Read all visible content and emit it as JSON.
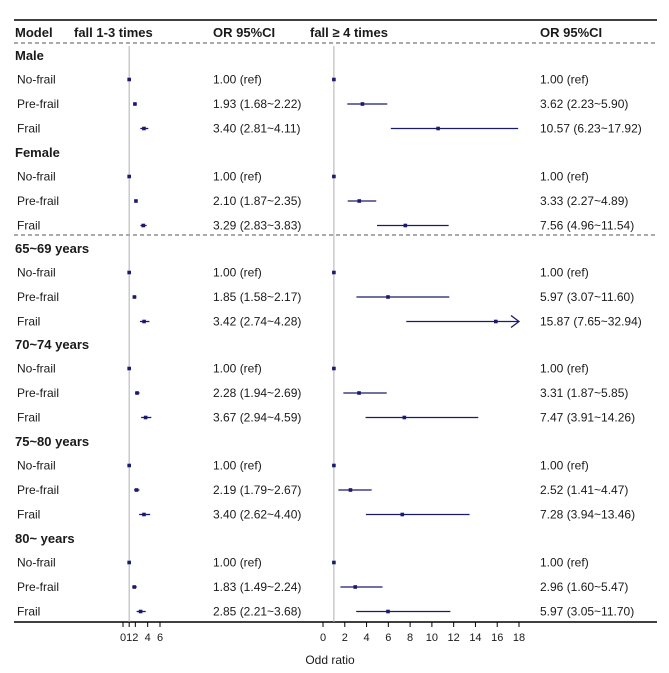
{
  "chart_data": {
    "type": "forest",
    "headers": {
      "model": "Model",
      "panel1": "fall 1-3 times",
      "or1": "OR 95%CI",
      "panel2": "fall ≥ 4 times",
      "or2": "OR 95%CI"
    },
    "xlabel": "Odd ratio",
    "panels": [
      {
        "name": "fall 1-3 times",
        "xlim": [
          0,
          6
        ],
        "ticks": [
          0,
          1,
          2,
          4,
          6
        ],
        "ref": 1
      },
      {
        "name": "fall ≥ 4 times",
        "xlim": [
          0,
          18
        ],
        "ticks": [
          0,
          2,
          4,
          6,
          8,
          10,
          12,
          14,
          16,
          18
        ],
        "ref": 1
      }
    ],
    "groups": [
      {
        "name": "Male",
        "rows": [
          {
            "label": "No-frail",
            "p1": {
              "or": 1.0,
              "lo": 1.0,
              "hi": 1.0,
              "text": "1.00 (ref)"
            },
            "p2": {
              "or": 1.0,
              "lo": 1.0,
              "hi": 1.0,
              "text": "1.00 (ref)"
            }
          },
          {
            "label": "Pre-frail",
            "p1": {
              "or": 1.93,
              "lo": 1.68,
              "hi": 2.22,
              "text": "1.93 (1.68~2.22)"
            },
            "p2": {
              "or": 3.62,
              "lo": 2.23,
              "hi": 5.9,
              "text": "3.62 (2.23~5.90)"
            }
          },
          {
            "label": "Frail",
            "p1": {
              "or": 3.4,
              "lo": 2.81,
              "hi": 4.11,
              "text": "3.40 (2.81~4.11)"
            },
            "p2": {
              "or": 10.57,
              "lo": 6.23,
              "hi": 17.92,
              "text": "10.57 (6.23~17.92)"
            }
          }
        ]
      },
      {
        "name": "Female",
        "rows": [
          {
            "label": "No-frail",
            "p1": {
              "or": 1.0,
              "lo": 1.0,
              "hi": 1.0,
              "text": "1.00 (ref)"
            },
            "p2": {
              "or": 1.0,
              "lo": 1.0,
              "hi": 1.0,
              "text": "1.00 (ref)"
            }
          },
          {
            "label": "Pre-frail",
            "p1": {
              "or": 2.1,
              "lo": 1.87,
              "hi": 2.35,
              "text": "2.10 (1.87~2.35)"
            },
            "p2": {
              "or": 3.33,
              "lo": 2.27,
              "hi": 4.89,
              "text": "3.33 (2.27~4.89)"
            }
          },
          {
            "label": "Frail",
            "p1": {
              "or": 3.29,
              "lo": 2.83,
              "hi": 3.83,
              "text": "3.29 (2.83~3.83)"
            },
            "p2": {
              "or": 7.56,
              "lo": 4.96,
              "hi": 11.54,
              "text": "7.56 (4.96~11.54)"
            }
          }
        ]
      },
      {
        "name": "65~69 years",
        "rows": [
          {
            "label": "No-frail",
            "p1": {
              "or": 1.0,
              "lo": 1.0,
              "hi": 1.0,
              "text": "1.00 (ref)"
            },
            "p2": {
              "or": 1.0,
              "lo": 1.0,
              "hi": 1.0,
              "text": "1.00 (ref)"
            }
          },
          {
            "label": "Pre-frail",
            "p1": {
              "or": 1.85,
              "lo": 1.58,
              "hi": 2.17,
              "text": "1.85 (1.58~2.17)"
            },
            "p2": {
              "or": 5.97,
              "lo": 3.07,
              "hi": 11.6,
              "text": "5.97 (3.07~11.60)"
            }
          },
          {
            "label": "Frail",
            "p1": {
              "or": 3.42,
              "lo": 2.74,
              "hi": 4.28,
              "text": "3.42 (2.74~4.28)"
            },
            "p2": {
              "or": 15.87,
              "lo": 7.65,
              "hi": 32.94,
              "text": "15.87 (7.65~32.94)"
            }
          }
        ]
      },
      {
        "name": "70~74 years",
        "rows": [
          {
            "label": "No-frail",
            "p1": {
              "or": 1.0,
              "lo": 1.0,
              "hi": 1.0,
              "text": "1.00 (ref)"
            },
            "p2": {
              "or": 1.0,
              "lo": 1.0,
              "hi": 1.0,
              "text": "1.00 (ref)"
            }
          },
          {
            "label": "Pre-frail",
            "p1": {
              "or": 2.28,
              "lo": 1.94,
              "hi": 2.69,
              "text": "2.28 (1.94~2.69)"
            },
            "p2": {
              "or": 3.31,
              "lo": 1.87,
              "hi": 5.85,
              "text": "3.31 (1.87~5.85)"
            }
          },
          {
            "label": "Frail",
            "p1": {
              "or": 3.67,
              "lo": 2.94,
              "hi": 4.59,
              "text": "3.67 (2.94~4.59)"
            },
            "p2": {
              "or": 7.47,
              "lo": 3.91,
              "hi": 14.26,
              "text": "7.47 (3.91~14.26)"
            }
          }
        ]
      },
      {
        "name": "75~80 years",
        "rows": [
          {
            "label": "No-frail",
            "p1": {
              "or": 1.0,
              "lo": 1.0,
              "hi": 1.0,
              "text": "1.00 (ref)"
            },
            "p2": {
              "or": 1.0,
              "lo": 1.0,
              "hi": 1.0,
              "text": "1.00 (ref)"
            }
          },
          {
            "label": "Pre-frail",
            "p1": {
              "or": 2.19,
              "lo": 1.79,
              "hi": 2.67,
              "text": "2.19 (1.79~2.67)"
            },
            "p2": {
              "or": 2.52,
              "lo": 1.41,
              "hi": 4.47,
              "text": "2.52 (1.41~4.47)"
            }
          },
          {
            "label": "Frail",
            "p1": {
              "or": 3.4,
              "lo": 2.62,
              "hi": 4.4,
              "text": "3.40 (2.62~4.40)"
            },
            "p2": {
              "or": 7.28,
              "lo": 3.94,
              "hi": 13.46,
              "text": "7.28 (3.94~13.46)"
            }
          }
        ]
      },
      {
        "name": "80~ years",
        "rows": [
          {
            "label": "No-frail",
            "p1": {
              "or": 1.0,
              "lo": 1.0,
              "hi": 1.0,
              "text": "1.00 (ref)"
            },
            "p2": {
              "or": 1.0,
              "lo": 1.0,
              "hi": 1.0,
              "text": "1.00 (ref)"
            }
          },
          {
            "label": "Pre-frail",
            "p1": {
              "or": 1.83,
              "lo": 1.49,
              "hi": 2.24,
              "text": "1.83 (1.49~2.24)"
            },
            "p2": {
              "or": 2.96,
              "lo": 1.6,
              "hi": 5.47,
              "text": "2.96 (1.60~5.47)"
            }
          },
          {
            "label": "Frail",
            "p1": {
              "or": 2.85,
              "lo": 2.21,
              "hi": 3.68,
              "text": "2.85 (2.21~3.68)"
            },
            "p2": {
              "or": 5.97,
              "lo": 3.05,
              "hi": 11.7,
              "text": "5.97 (3.05~11.70)"
            }
          }
        ]
      }
    ],
    "colors": {
      "marker": "#1a1a6e",
      "ref_line": "#b0b0b0",
      "text": "#1a1a1a"
    }
  }
}
